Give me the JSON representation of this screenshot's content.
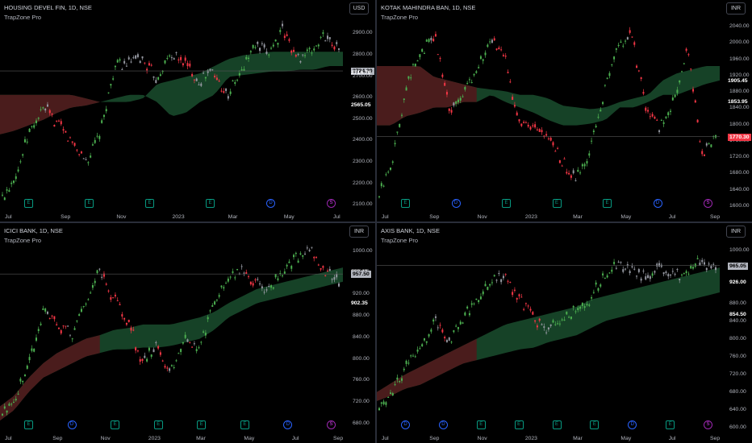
{
  "panes": [
    {
      "symbol": "HOUSING DEVEL FIN, 1D, NSE",
      "indicator": "TrapZone Pro",
      "currency": "USD",
      "y_labels": [
        "2900.00",
        "2800.00",
        "2700.00",
        "2600.00",
        "2500.00",
        "2400.00",
        "2300.00",
        "2200.00",
        "2100.00"
      ],
      "y_range": [
        2075,
        2950
      ],
      "levels": [
        "2724.30",
        "2714.70",
        "2565.05"
      ],
      "last_price": "2724.30",
      "last_price_value": 2724.3,
      "x_labels": [
        "Jul",
        "Sep",
        "Nov",
        "2023",
        "Mar",
        "May",
        "Jul"
      ],
      "events": [
        "E",
        "E",
        "E",
        "E",
        "D",
        "S"
      ],
      "cloud_color": "#1a4d2e",
      "bear_cloud_color": "#4a1c1c"
    },
    {
      "symbol": "KOTAK MAHINDRA BAN, 1D, NSE",
      "indicator": "TrapZone Pro",
      "currency": "INR",
      "y_labels": [
        "2040.00",
        "2000.00",
        "1960.00",
        "1920.00",
        "1880.00",
        "1840.00",
        "1800.00",
        "1760.00",
        "1720.00",
        "1680.00",
        "1640.00",
        "1600.00"
      ],
      "y_range": [
        1590,
        2050
      ],
      "levels": [
        "1905.45",
        "1853.95",
        "1770.30"
      ],
      "last_price": "1770.30",
      "last_price_value": 1770.3,
      "x_labels": [
        "Jul",
        "Sep",
        "Nov",
        "2023",
        "Mar",
        "May",
        "Jul",
        "Sep"
      ],
      "events": [
        "E",
        "D",
        "E",
        "E",
        "E",
        "D",
        "S"
      ],
      "cloud_color": "#1a4d2e",
      "bear_cloud_color": "#4a1c1c"
    },
    {
      "symbol": "ICICI BANK, 1D, NSE",
      "indicator": "TrapZone Pro",
      "currency": "INR",
      "y_labels": [
        "1000.00",
        "960.00",
        "920.00",
        "880.00",
        "840.00",
        "800.00",
        "760.00",
        "720.00",
        "680.00"
      ],
      "y_range": [
        665,
        1010
      ],
      "levels": [
        "960.10",
        "957.50",
        "902.35"
      ],
      "last_price": "957.50",
      "last_price_value": 957.5,
      "x_labels": [
        "Jul",
        "Sep",
        "Nov",
        "2023",
        "Mar",
        "May",
        "Jul",
        "Sep"
      ],
      "events": [
        "E",
        "D",
        "E",
        "E",
        "E",
        "E",
        "D",
        "S"
      ],
      "cloud_color": "#1a4d2e",
      "bear_cloud_color": "#4a1c1c"
    },
    {
      "symbol": "AXIS BANK, 1D, NSE",
      "indicator": "TrapZone Pro",
      "currency": "INR",
      "y_labels": [
        "1000.00",
        "960.00",
        "926.00",
        "880.00",
        "854.50",
        "840.00",
        "800.00",
        "760.00",
        "720.00",
        "680.00",
        "640.00",
        "600.00"
      ],
      "y_range": [
        590,
        1010
      ],
      "levels": [
        "965.05",
        "926.00",
        "854.50"
      ],
      "last_price": "965.05",
      "last_price_value": 965.05,
      "x_labels": [
        "Jul",
        "Sep",
        "Nov",
        "2023",
        "Mar",
        "May",
        "Jul",
        "Sep"
      ],
      "events": [
        "D",
        "D",
        "E",
        "E",
        "E",
        "E",
        "D",
        "E",
        "S"
      ],
      "cloud_color": "#1a4d2e",
      "bear_cloud_color": "#4a1c1c"
    }
  ]
}
